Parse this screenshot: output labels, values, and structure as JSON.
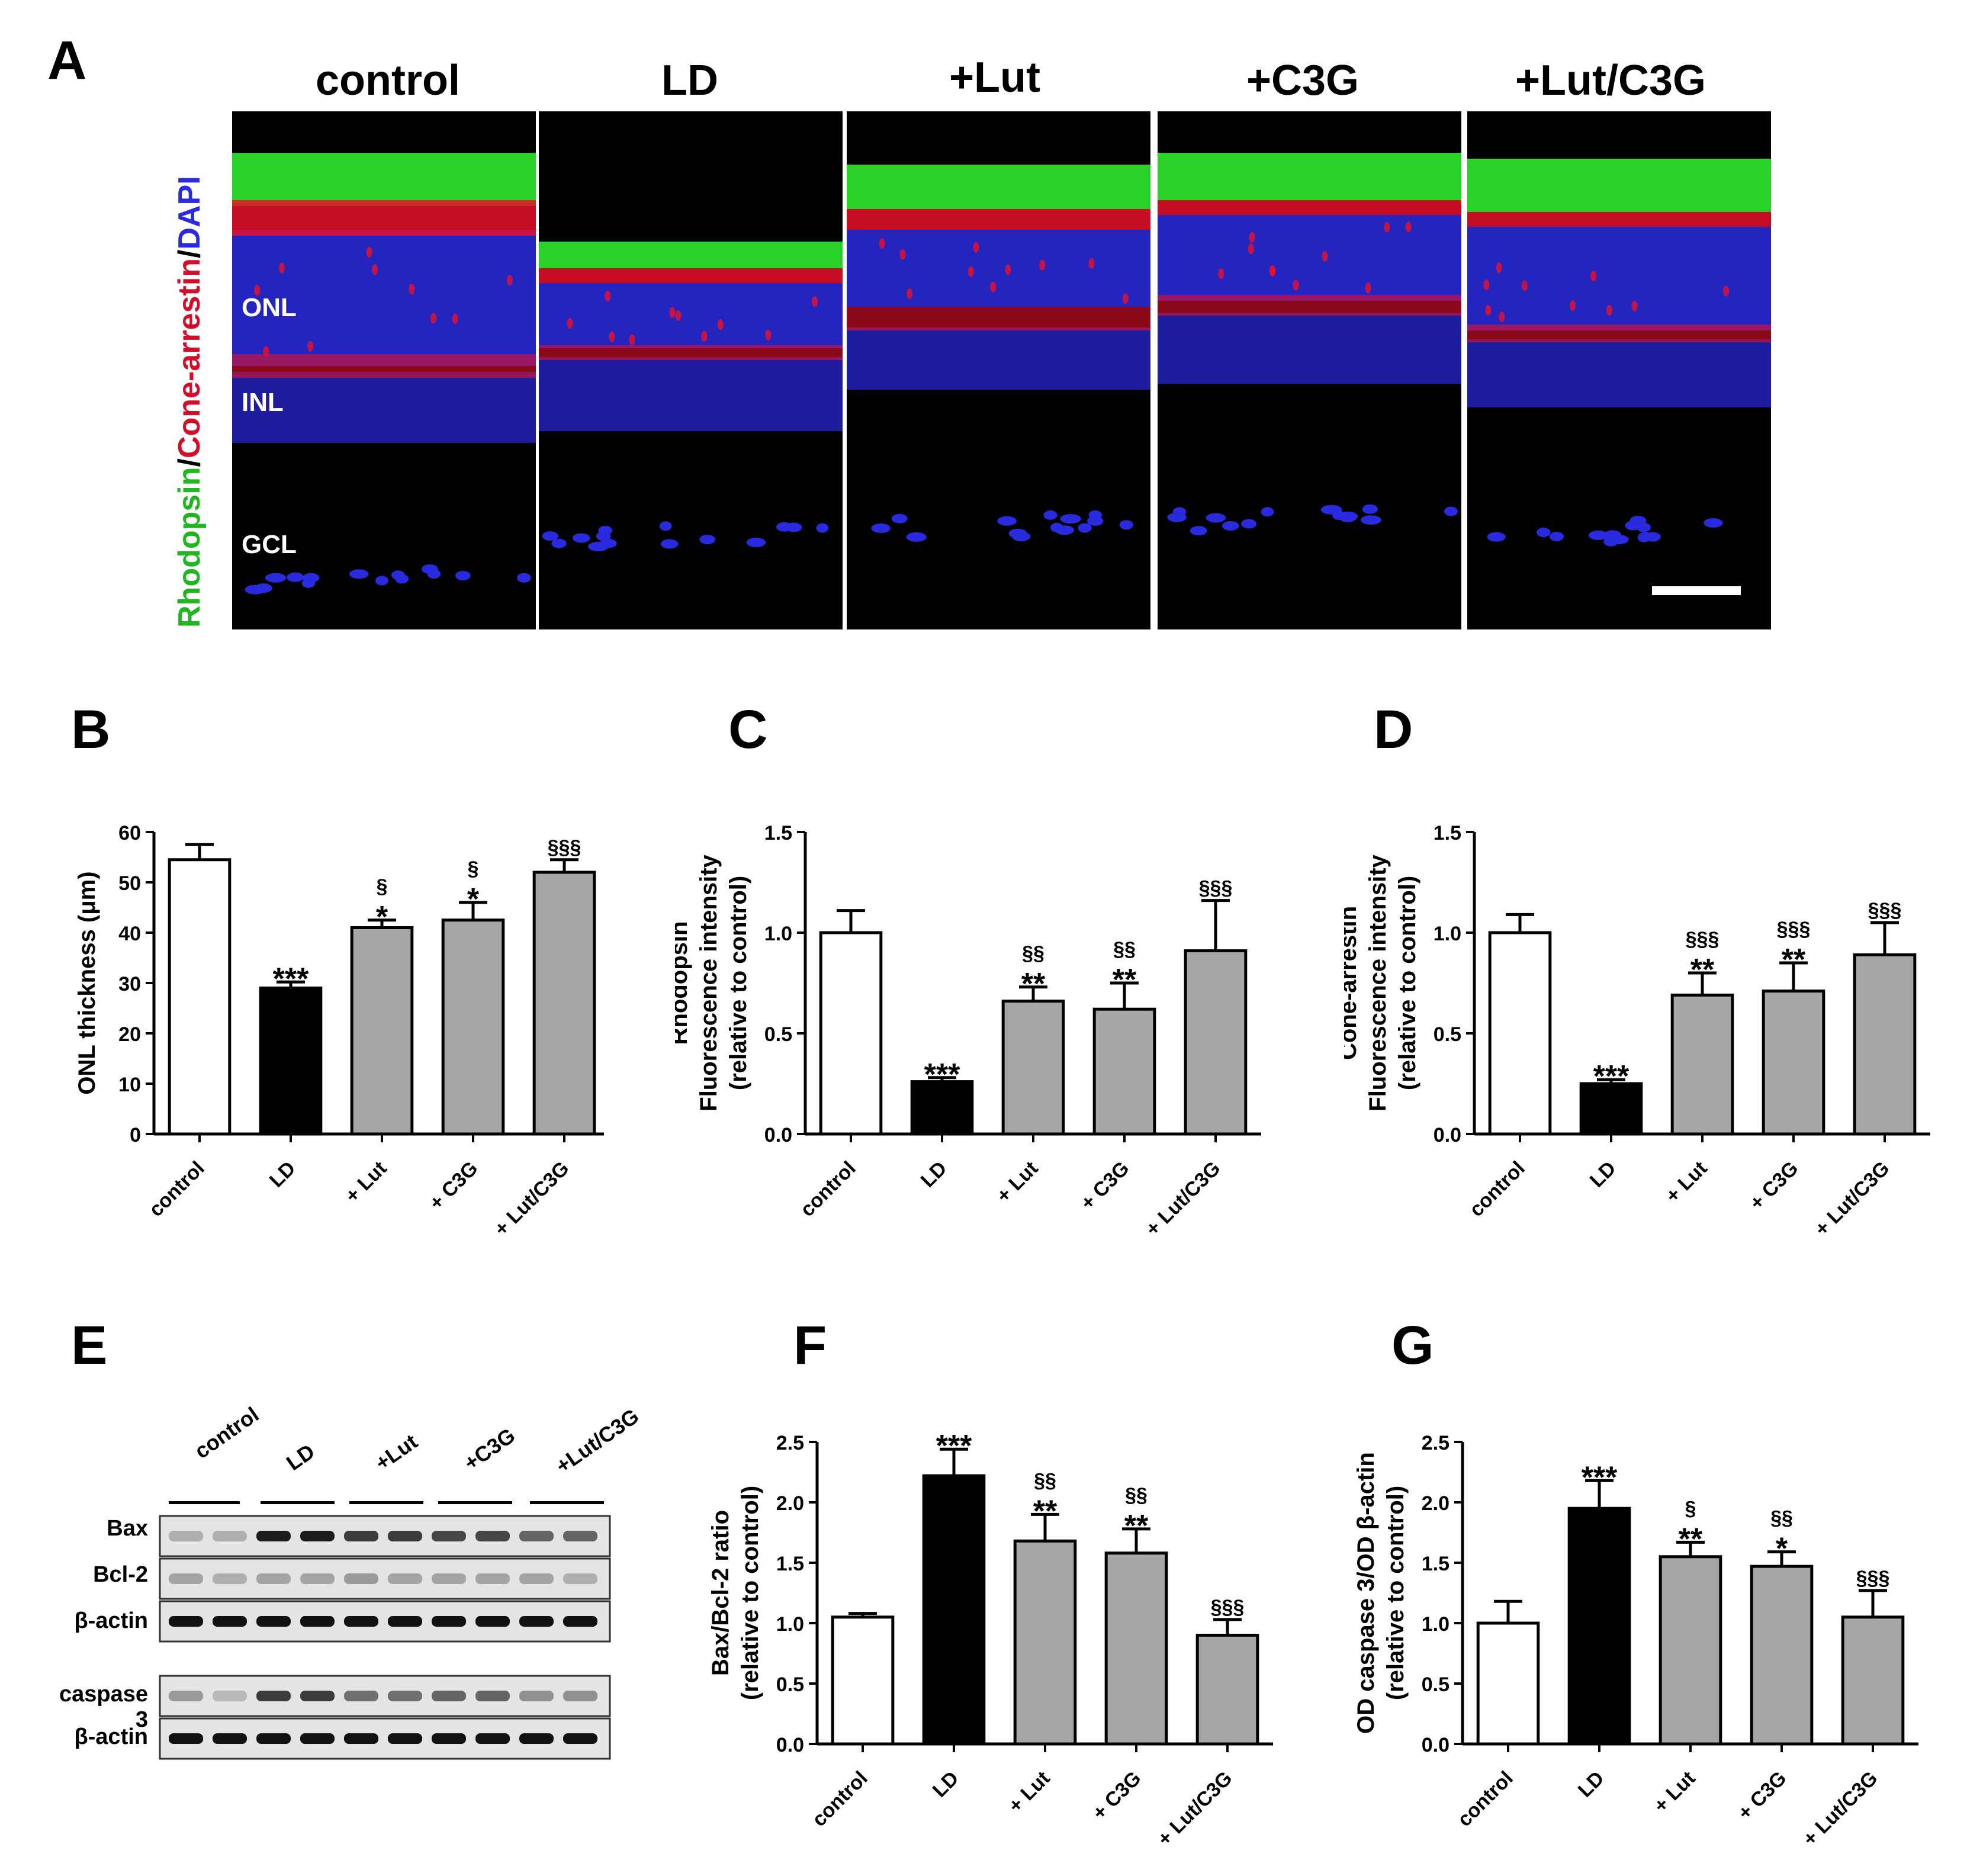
{
  "panel_letters": [
    "A",
    "B",
    "C",
    "D",
    "E",
    "F",
    "G"
  ],
  "microscopy": {
    "columns": [
      "control",
      "LD",
      "+Lut",
      "+C3G",
      "+Lut/C3G"
    ],
    "stain_legend": {
      "part1": "Rhodopsin",
      "sep1": "/",
      "part2": "Cone-arrestin",
      "sep2": "/",
      "part3": "DAPI"
    },
    "layer_labels": [
      "ONL",
      "INL",
      "GCL"
    ],
    "colors": {
      "rhodopsin": "#2ee82e",
      "cone_arrestin": "#e8102a",
      "dapi": "#2a2adf"
    }
  },
  "western_blot": {
    "groups": [
      "control",
      "LD",
      "+Lut",
      "+C3G",
      "+Lut/C3G"
    ],
    "blot1_rows": [
      "Bax",
      "Bcl-2",
      "β-actin"
    ],
    "blot2_rows": [
      "caspase 3",
      "β-actin"
    ]
  },
  "chart_data": [
    {
      "panel": "B",
      "type": "bar",
      "categories": [
        "control",
        "LD",
        "+ Lut",
        "+ C3G",
        "+ Lut/C3G"
      ],
      "values": [
        54.5,
        29,
        41,
        42.5,
        52
      ],
      "errors": [
        3,
        1.2,
        1.5,
        3.5,
        2.5
      ],
      "ylabel": "ONL thickness (μm)",
      "ylim": [
        0,
        60
      ],
      "yticks": [
        "0",
        "10",
        "20",
        "30",
        "40",
        "50",
        "60"
      ],
      "annot_stars": [
        "",
        "***",
        "*",
        "*",
        ""
      ],
      "annot_section": [
        "",
        "",
        "§",
        "§",
        "§§§"
      ],
      "bar_colors": [
        "#ffffff",
        "#000000",
        "#a6a6a6",
        "#a6a6a6",
        "#a6a6a6"
      ]
    },
    {
      "panel": "C",
      "type": "bar",
      "categories": [
        "control",
        "LD",
        "+ Lut",
        "+ C3G",
        "+ Lut/C3G"
      ],
      "values": [
        1.0,
        0.26,
        0.66,
        0.62,
        0.91
      ],
      "errors": [
        0.11,
        0.02,
        0.07,
        0.13,
        0.25
      ],
      "ylabel_lines": [
        "Rhodopsin",
        "Fluorescence intensity",
        "(relative to control)"
      ],
      "ylim": [
        0,
        1.5
      ],
      "yticks": [
        "0.0",
        "0.5",
        "1.0",
        "1.5"
      ],
      "annot_stars": [
        "",
        "***",
        "**",
        "**",
        ""
      ],
      "annot_section": [
        "",
        "",
        "§§",
        "§§",
        "§§§"
      ],
      "bar_colors": [
        "#ffffff",
        "#000000",
        "#a6a6a6",
        "#a6a6a6",
        "#a6a6a6"
      ]
    },
    {
      "panel": "D",
      "type": "bar",
      "categories": [
        "control",
        "LD",
        "+ Lut",
        "+ C3G",
        "+ Lut/C3G"
      ],
      "values": [
        1.0,
        0.25,
        0.69,
        0.71,
        0.89
      ],
      "errors": [
        0.09,
        0.02,
        0.11,
        0.14,
        0.16
      ],
      "ylabel_lines": [
        "Cone-arrestin",
        "Fluorescence intensity",
        "(relative to control)"
      ],
      "ylim": [
        0,
        1.5
      ],
      "yticks": [
        "0.0",
        "0.5",
        "1.0",
        "1.5"
      ],
      "annot_stars": [
        "",
        "***",
        "**",
        "**",
        ""
      ],
      "annot_section": [
        "",
        "",
        "§§§",
        "§§§",
        "§§§"
      ],
      "bar_colors": [
        "#ffffff",
        "#000000",
        "#a6a6a6",
        "#a6a6a6",
        "#a6a6a6"
      ]
    },
    {
      "panel": "F",
      "type": "bar",
      "categories": [
        "control",
        "LD",
        "+ Lut",
        "+ C3G",
        "+ Lut/C3G"
      ],
      "values": [
        1.05,
        2.22,
        1.68,
        1.58,
        0.9
      ],
      "errors": [
        0.03,
        0.22,
        0.22,
        0.2,
        0.13
      ],
      "ylabel_lines": [
        "Bax/Bcl-2 ratio",
        "(relative to control)"
      ],
      "ylim": [
        0,
        2.5
      ],
      "yticks": [
        "0.0",
        "0.5",
        "1.0",
        "1.5",
        "2.0",
        "2.5"
      ],
      "annot_stars": [
        "",
        "***",
        "**",
        "**",
        ""
      ],
      "annot_section": [
        "",
        "",
        "§§",
        "§§",
        "§§§"
      ],
      "bar_colors": [
        "#ffffff",
        "#000000",
        "#a6a6a6",
        "#a6a6a6",
        "#a6a6a6"
      ]
    },
    {
      "panel": "G",
      "type": "bar",
      "categories": [
        "control",
        "LD",
        "+ Lut",
        "+ C3G",
        "+ Lut/C3G"
      ],
      "values": [
        1.0,
        1.95,
        1.55,
        1.47,
        1.05
      ],
      "errors": [
        0.18,
        0.23,
        0.12,
        0.12,
        0.22
      ],
      "ylabel_lines": [
        "OD caspase 3/OD β-actin",
        "(relative to control)"
      ],
      "ylim": [
        0,
        2.5
      ],
      "yticks": [
        "0.0",
        "0.5",
        "1.0",
        "1.5",
        "2.0",
        "2.5"
      ],
      "annot_stars": [
        "",
        "***",
        "**",
        "*",
        ""
      ],
      "annot_section": [
        "",
        "",
        "§",
        "§§",
        "§§§"
      ],
      "bar_colors": [
        "#ffffff",
        "#000000",
        "#a6a6a6",
        "#a6a6a6",
        "#a6a6a6"
      ]
    }
  ]
}
